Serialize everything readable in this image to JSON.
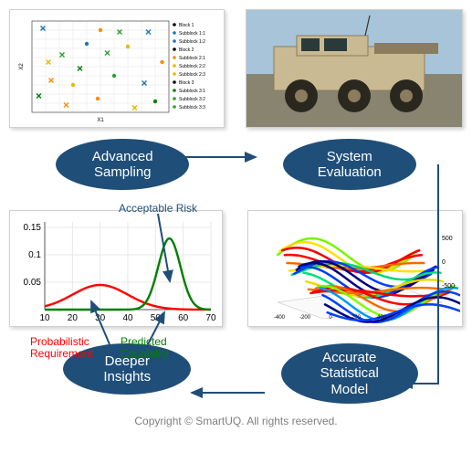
{
  "ellipses": {
    "adv_sampling": "Advanced\nSampling",
    "sys_eval": "System\nEvaluation",
    "deeper": "Deeper\nInsights",
    "asm": "Accurate\nStatistical\nModel"
  },
  "footer": "Copyright © SmartUQ.  All rights reserved.",
  "colors": {
    "ellipse_bg": "#1f4e79",
    "ellipse_fg": "#ffffff",
    "arrow": "#1f4e79",
    "acceptable": "#1f4e79",
    "prob_req": "#ff0000",
    "predicted": "#008000"
  },
  "scatter_panel": {
    "xlabel": "X1",
    "ylabel": "X2",
    "xlim": [
      0,
      1
    ],
    "ylim": [
      0,
      1
    ],
    "grid_color": "#f0f0f0",
    "legend": [
      "Block 1",
      "Subblock 1:1",
      "Subblock 1:2",
      "Block 2",
      "Subblock 2:1",
      "Subblock 2:2",
      "Subblock 2:3",
      "Block 3",
      "Subblock 3:1",
      "Subblock 3:2",
      "Subblock 3:3"
    ],
    "points": [
      {
        "x": 0.08,
        "y": 0.92,
        "color": "#1f77b4",
        "shape": "x"
      },
      {
        "x": 0.85,
        "y": 0.88,
        "color": "#1f77b4",
        "shape": "x"
      },
      {
        "x": 0.5,
        "y": 0.9,
        "color": "#ff8c00",
        "shape": "circle"
      },
      {
        "x": 0.12,
        "y": 0.55,
        "color": "#e6b800",
        "shape": "x"
      },
      {
        "x": 0.9,
        "y": 0.12,
        "color": "#008000",
        "shape": "circle"
      },
      {
        "x": 0.55,
        "y": 0.65,
        "color": "#2ca02c",
        "shape": "x"
      },
      {
        "x": 0.3,
        "y": 0.3,
        "color": "#e6b800",
        "shape": "circle"
      },
      {
        "x": 0.75,
        "y": 0.05,
        "color": "#e6b800",
        "shape": "x"
      },
      {
        "x": 0.25,
        "y": 0.08,
        "color": "#ff8c00",
        "shape": "x"
      },
      {
        "x": 0.6,
        "y": 0.4,
        "color": "#2ca02c",
        "shape": "circle"
      },
      {
        "x": 0.4,
        "y": 0.75,
        "color": "#1f77b4",
        "shape": "circle"
      },
      {
        "x": 0.05,
        "y": 0.18,
        "color": "#008000",
        "shape": "x"
      },
      {
        "x": 0.95,
        "y": 0.55,
        "color": "#ff8c00",
        "shape": "circle"
      },
      {
        "x": 0.7,
        "y": 0.72,
        "color": "#e6b800",
        "shape": "circle"
      },
      {
        "x": 0.22,
        "y": 0.63,
        "color": "#2ca02c",
        "shape": "x"
      },
      {
        "x": 0.82,
        "y": 0.32,
        "color": "#1f77b4",
        "shape": "x"
      },
      {
        "x": 0.48,
        "y": 0.15,
        "color": "#ff8c00",
        "shape": "circle"
      },
      {
        "x": 0.35,
        "y": 0.48,
        "color": "#008000",
        "shape": "x"
      },
      {
        "x": 0.64,
        "y": 0.88,
        "color": "#2ca02c",
        "shape": "x"
      },
      {
        "x": 0.14,
        "y": 0.35,
        "color": "#ff8c00",
        "shape": "x"
      }
    ]
  },
  "vehicle_panel": {
    "sky_color": "#a8c4d8",
    "body_color": "#c9ba94",
    "body_dark": "#8a7c5d",
    "tire": "#2a281e",
    "ground": "#888470"
  },
  "bell_panel": {
    "xlim": [
      10,
      70
    ],
    "xtick_step": 10,
    "ylim": [
      0,
      0.16
    ],
    "yticks": [
      0.05,
      0.1,
      0.15
    ],
    "grid_color": "#e8e8e8",
    "curves": {
      "red": {
        "color": "#ff0000",
        "mean": 30,
        "sd": 10,
        "amp": 0.045
      },
      "green": {
        "color": "#008000",
        "mean": 55,
        "sd": 4,
        "amp": 0.13
      }
    },
    "xtick_labels": [
      "10",
      "20",
      "30",
      "40",
      "50",
      "60",
      "70"
    ],
    "annotations": {
      "acceptable_risk": "Acceptable Risk",
      "probabilistic": "Probabilistic\nRequirement",
      "predicted": "Predicted\nCapability"
    }
  },
  "surface_panel": {
    "zlabels": [
      "-500",
      "0",
      "500"
    ],
    "xylabels": [
      "-400",
      "-200",
      "0",
      "200",
      "400"
    ],
    "colors": [
      "#000080",
      "#0040ff",
      "#00a0ff",
      "#00e080",
      "#80ff00",
      "#ffe000",
      "#ff7000",
      "#ff0000"
    ]
  }
}
